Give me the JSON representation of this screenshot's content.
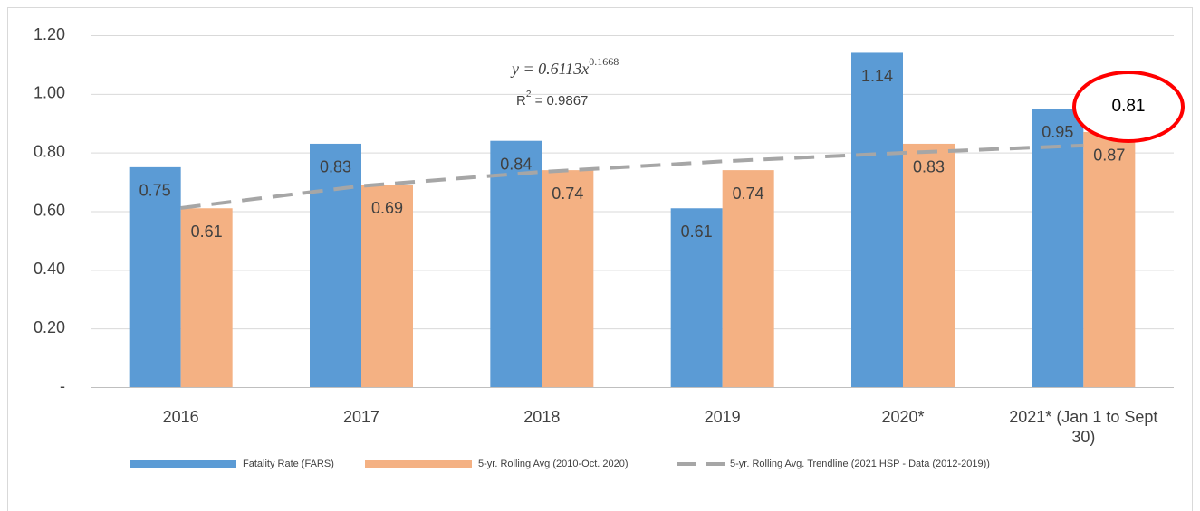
{
  "chart_data": {
    "type": "bar",
    "categories": [
      "2016",
      "2017",
      "2018",
      "2019",
      "2020*",
      "2021* (Jan 1 to Sept 30)"
    ],
    "series": [
      {
        "name": "Fatality Rate (FARS)",
        "color": "#5b9bd5",
        "values": [
          0.75,
          0.83,
          0.84,
          0.61,
          1.14,
          0.95
        ]
      },
      {
        "name": "5-yr. Rolling Avg (2010-Oct. 2020)",
        "color": "#f4b183",
        "values": [
          0.61,
          0.69,
          0.74,
          0.74,
          0.83,
          0.87
        ]
      },
      {
        "name": "5-yr. Rolling Avg. Trendline (2021 HSP - Data (2012-2019))",
        "color": "#a6a6a6",
        "type": "line",
        "dashed": true,
        "values": [
          0.611,
          0.686,
          0.734,
          0.77,
          0.799,
          0.824
        ]
      }
    ],
    "ylim": [
      0,
      1.2
    ],
    "yticks": [
      {
        "value": 0,
        "label": "-"
      },
      {
        "value": 0.2,
        "label": "0.20"
      },
      {
        "value": 0.4,
        "label": "0.40"
      },
      {
        "value": 0.6,
        "label": "0.60"
      },
      {
        "value": 0.8,
        "label": "0.80"
      },
      {
        "value": 1.0,
        "label": "1.00"
      },
      {
        "value": 1.2,
        "label": "1.20"
      }
    ],
    "grid": true,
    "legend": "bottom",
    "equation": {
      "base": "y = 0.6113x",
      "exponent": "0.1668"
    },
    "r_squared": {
      "base": "R",
      "exponent": "2",
      "rest": " = 0.9867"
    },
    "callout": "0.81"
  }
}
